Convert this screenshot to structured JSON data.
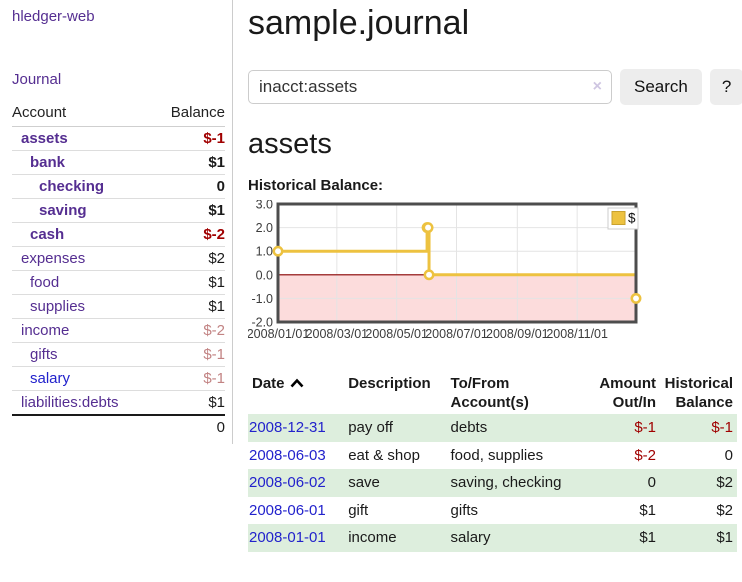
{
  "palette": {
    "link_purple": "#552e91",
    "link_blue": "#2222cc",
    "negative_strong": "#a00000",
    "negative_soft": "#c28383",
    "row_stripe_green": "#ddeedd",
    "chart_line_gold": "#edc240",
    "chart_negative_fill": "#fcdcdc",
    "chart_zero_line": "#8b0000",
    "button_gray": "#ededed"
  },
  "sidebar": {
    "app_title": "hledger-web",
    "nav_journal": "Journal",
    "table": {
      "account_header": "Account",
      "balance_header": "Balance",
      "rows": [
        {
          "name": "assets",
          "depth": 1,
          "bold": true,
          "link_color": "purple",
          "balance": "$-1",
          "balance_tone": "neg-strong"
        },
        {
          "name": "bank",
          "depth": 2,
          "bold": true,
          "link_color": "purple",
          "balance": "$1",
          "balance_tone": "normal"
        },
        {
          "name": "checking",
          "depth": 3,
          "bold": true,
          "link_color": "purple",
          "balance": "0",
          "balance_tone": "normal"
        },
        {
          "name": "saving",
          "depth": 3,
          "bold": true,
          "link_color": "purple",
          "balance": "$1",
          "balance_tone": "normal"
        },
        {
          "name": "cash",
          "depth": 2,
          "bold": true,
          "link_color": "purple",
          "balance": "$-2",
          "balance_tone": "neg-strong"
        },
        {
          "name": "expenses",
          "depth": 1,
          "bold": false,
          "link_color": "purple",
          "balance": "$2",
          "balance_tone": "normal"
        },
        {
          "name": "food",
          "depth": 2,
          "bold": false,
          "link_color": "purple",
          "balance": "$1",
          "balance_tone": "normal"
        },
        {
          "name": "supplies",
          "depth": 2,
          "bold": false,
          "link_color": "purple",
          "balance": "$1",
          "balance_tone": "normal"
        },
        {
          "name": "income",
          "depth": 1,
          "bold": false,
          "link_color": "purple",
          "balance": "$-2",
          "balance_tone": "neg-soft"
        },
        {
          "name": "gifts",
          "depth": 2,
          "bold": false,
          "link_color": "purple",
          "balance": "$-1",
          "balance_tone": "neg-soft"
        },
        {
          "name": "salary",
          "depth": 2,
          "bold": false,
          "link_color": "blue",
          "balance": "$-1",
          "balance_tone": "neg-soft"
        },
        {
          "name": "liabilities:debts",
          "depth": 1,
          "bold": false,
          "link_color": "purple",
          "balance": "$1",
          "balance_tone": "normal"
        }
      ],
      "total": "0"
    }
  },
  "header": {
    "title": "sample.journal"
  },
  "search": {
    "query": "inacct:assets",
    "clear_icon": "×",
    "button_label": "Search",
    "help_label": "?"
  },
  "account_page": {
    "title": "assets",
    "chart_label": "Historical Balance:"
  },
  "chart_data": {
    "type": "line",
    "title": "Historical Balance",
    "step": true,
    "series": [
      {
        "name": "$",
        "color": "#edc240",
        "points": [
          {
            "date": "2008-01-01",
            "value": 1
          },
          {
            "date": "2008-06-01",
            "value": 2
          },
          {
            "date": "2008-06-02",
            "value": 2
          },
          {
            "date": "2008-06-03",
            "value": 0
          },
          {
            "date": "2008-12-31",
            "value": -1
          }
        ]
      }
    ],
    "x_ticks": [
      {
        "date": "2008-01-01",
        "label": "2008/01/01"
      },
      {
        "date": "2008-03-01",
        "label": "2008/03/01"
      },
      {
        "date": "2008-05-01",
        "label": "2008/05/01"
      },
      {
        "date": "2008-07-01",
        "label": "2008/07/01"
      },
      {
        "date": "2008-09-01",
        "label": "2008/09/01"
      },
      {
        "date": "2008-11-01",
        "label": "2008/11/01"
      }
    ],
    "y_ticks": [
      {
        "value": 3,
        "label": "3.0"
      },
      {
        "value": 2,
        "label": "2.0"
      },
      {
        "value": 1,
        "label": "1.0"
      },
      {
        "value": 0,
        "label": "0.0"
      },
      {
        "value": -1,
        "label": "-1.0"
      },
      {
        "value": -2,
        "label": "-2.0"
      }
    ],
    "xlim": [
      "2008-01-01",
      "2008-12-31"
    ],
    "ylim": [
      -2,
      3
    ],
    "grid": true,
    "legend": {
      "label": "$",
      "position": "top-right"
    },
    "negative_region_fill": "#fcdcdc",
    "zero_line_color": "#8b0000"
  },
  "register": {
    "columns": [
      {
        "id": "date",
        "lines": [
          "Date"
        ],
        "align": "left",
        "sortable": true
      },
      {
        "id": "description",
        "lines": [
          "Description"
        ],
        "align": "left",
        "sortable": false
      },
      {
        "id": "accounts",
        "lines": [
          "To/From",
          "Account(s)"
        ],
        "align": "left",
        "sortable": false
      },
      {
        "id": "amount",
        "lines": [
          "Amount",
          "Out/In"
        ],
        "align": "right",
        "sortable": false
      },
      {
        "id": "balance",
        "lines": [
          "Historical",
          "Balance"
        ],
        "align": "right",
        "sortable": false
      }
    ],
    "rows": [
      {
        "date": "2008-12-31",
        "description": "pay off",
        "accounts": "debts",
        "amount": "$-1",
        "balance": "$-1"
      },
      {
        "date": "2008-06-03",
        "description": "eat & shop",
        "accounts": "food, supplies",
        "amount": "$-2",
        "balance": "0"
      },
      {
        "date": "2008-06-02",
        "description": "save",
        "accounts": "saving, checking",
        "amount": "0",
        "balance": "$2"
      },
      {
        "date": "2008-06-01",
        "description": "gift",
        "accounts": "gifts",
        "amount": "$1",
        "balance": "$2"
      },
      {
        "date": "2008-01-01",
        "description": "income",
        "accounts": "salary",
        "amount": "$1",
        "balance": "$1"
      }
    ]
  },
  "icons": {
    "sort_ascending": "chevron-up",
    "clear_search": "x-mark"
  }
}
